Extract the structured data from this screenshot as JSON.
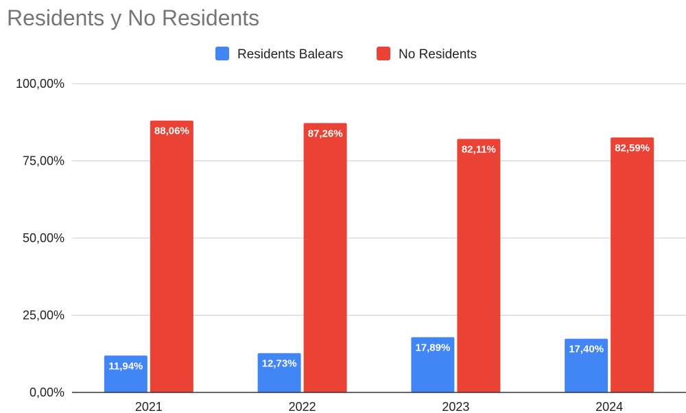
{
  "chart_data": {
    "type": "bar",
    "title": "Residents y No Residents",
    "xlabel": "",
    "ylabel": "",
    "categories": [
      "2021",
      "2022",
      "2023",
      "2024"
    ],
    "series": [
      {
        "name": "Residents Balears",
        "color": "#4285f4",
        "values": [
          11.94,
          12.73,
          17.89,
          17.4
        ],
        "labels": [
          "11,94%",
          "12,73%",
          "17,89%",
          "17,40%"
        ]
      },
      {
        "name": "No Residents",
        "color": "#ea4335",
        "values": [
          88.06,
          87.26,
          82.11,
          82.59
        ],
        "labels": [
          "88,06%",
          "87,26%",
          "82,11%",
          "82,59%"
        ]
      }
    ],
    "ylim": [
      0,
      100
    ],
    "yticks": [
      0,
      25,
      50,
      75,
      100
    ],
    "ytick_labels": [
      "0,00%",
      "25,00%",
      "50,00%",
      "75,00%",
      "100,00%"
    ],
    "grid": true,
    "legend_position": "top"
  }
}
